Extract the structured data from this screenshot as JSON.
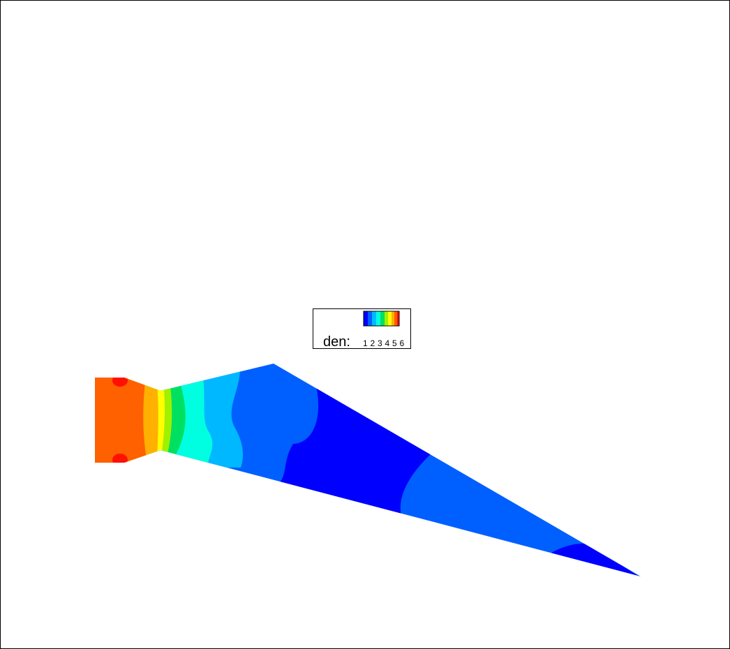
{
  "legend": {
    "label": "den:",
    "ticks": [
      1,
      2,
      3,
      4,
      5,
      6
    ]
  }
}
